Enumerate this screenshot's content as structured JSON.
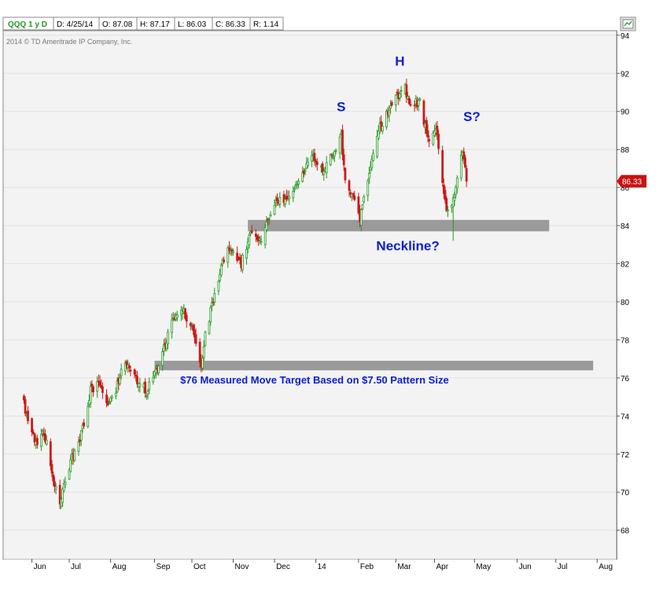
{
  "header": {
    "symbol": "QQQ 1 y D",
    "date": "D: 4/25/14",
    "open": "O: 87.08",
    "high": "H: 87.17",
    "low": "L: 86.03",
    "close": "C: 86.33",
    "range": "R: 1.14"
  },
  "copyright": "2014 © TD Ameritrade IP Company, Inc.",
  "last_price_tag": "86.33",
  "colors": {
    "up": "#1f9a1f",
    "down": "#d01818",
    "annotation": "#0b20cf",
    "band": "#9a9a9a",
    "price_tag": "#cc1111"
  },
  "chart_data": {
    "type": "candlestick",
    "x_tick_labels": [
      "Jun",
      "Jul",
      "Aug",
      "Sep",
      "Oct",
      "Nov",
      "Dec",
      "14",
      "Feb",
      "Mar",
      "Apr",
      "May",
      "Jun",
      "Jul",
      "Aug"
    ],
    "y_ticks": [
      68,
      70,
      72,
      74,
      76,
      78,
      80,
      82,
      84,
      86,
      88,
      90,
      92,
      94
    ],
    "ylim": [
      66.5,
      94.2
    ],
    "anchors": [
      [
        "2013-05-28",
        74.6
      ],
      [
        "2013-06-07",
        72.4
      ],
      [
        "2013-06-12",
        73.2
      ],
      [
        "2013-06-20",
        70.4
      ],
      [
        "2013-06-24",
        69.6
      ],
      [
        "2013-07-02",
        71.6
      ],
      [
        "2013-07-10",
        73.0
      ],
      [
        "2013-07-17",
        75.4
      ],
      [
        "2013-07-24",
        75.7
      ],
      [
        "2013-07-31",
        74.6
      ],
      [
        "2013-08-05",
        75.4
      ],
      [
        "2013-08-12",
        77.0
      ],
      [
        "2013-08-20",
        76.0
      ],
      [
        "2013-08-28",
        75.3
      ],
      [
        "2013-09-04",
        76.4
      ],
      [
        "2013-09-11",
        77.8
      ],
      [
        "2013-09-18",
        79.2
      ],
      [
        "2013-09-25",
        79.4
      ],
      [
        "2013-10-02",
        78.5
      ],
      [
        "2013-10-08",
        76.6
      ],
      [
        "2013-10-11",
        78.2
      ],
      [
        "2013-10-18",
        80.4
      ],
      [
        "2013-10-24",
        82.2
      ],
      [
        "2013-10-31",
        82.9
      ],
      [
        "2013-11-07",
        82.0
      ],
      [
        "2013-11-14",
        83.6
      ],
      [
        "2013-11-21",
        83.2
      ],
      [
        "2013-11-27",
        84.4
      ],
      [
        "2013-12-04",
        85.4
      ],
      [
        "2013-12-11",
        85.3
      ],
      [
        "2013-12-17",
        86.0
      ],
      [
        "2013-12-24",
        86.9
      ],
      [
        "2013-12-31",
        87.8
      ],
      [
        "2014-01-06",
        86.9
      ],
      [
        "2014-01-13",
        87.5
      ],
      [
        "2014-01-21",
        88.7
      ],
      [
        "2014-01-24",
        86.4
      ],
      [
        "2014-01-30",
        85.5
      ],
      [
        "2014-02-04",
        84.2
      ],
      [
        "2014-02-10",
        86.6
      ],
      [
        "2014-02-18",
        89.0
      ],
      [
        "2014-02-25",
        89.9
      ],
      [
        "2014-03-06",
        91.0
      ],
      [
        "2014-03-10",
        91.2
      ],
      [
        "2014-03-14",
        90.2
      ],
      [
        "2014-03-21",
        90.6
      ],
      [
        "2014-03-27",
        88.4
      ],
      [
        "2014-04-02",
        89.3
      ],
      [
        "2014-04-07",
        86.2
      ],
      [
        "2014-04-11",
        84.6
      ],
      [
        "2014-04-15",
        85.3
      ],
      [
        "2014-04-22",
        88.0
      ],
      [
        "2014-04-25",
        86.33
      ]
    ],
    "extreme_lows": {
      "2013-06-24": 69.1,
      "2013-10-09": 76.35,
      "2014-02-05": 83.7,
      "2014-04-15": 83.2
    },
    "bands": [
      {
        "from": "2013-11-12",
        "to": "2014-06-26",
        "low": 83.7,
        "high": 84.3
      },
      {
        "from": "2013-09-03",
        "to": "2014-07-29",
        "low": 76.4,
        "high": 76.9
      }
    ],
    "annotations": [
      {
        "text": "S",
        "date": "2014-01-21",
        "price": 90.0
      },
      {
        "text": "H",
        "date": "2014-03-06",
        "price": 92.4
      },
      {
        "text": "S?",
        "date": "2014-04-29",
        "price": 89.5
      },
      {
        "text": "Neckline?",
        "date": "2014-03-12",
        "price": 82.7
      },
      {
        "text": "$76 Measured Move Target Based on $7.50 Pattern Size",
        "date": "2014-01-01",
        "price": 75.7
      }
    ]
  }
}
